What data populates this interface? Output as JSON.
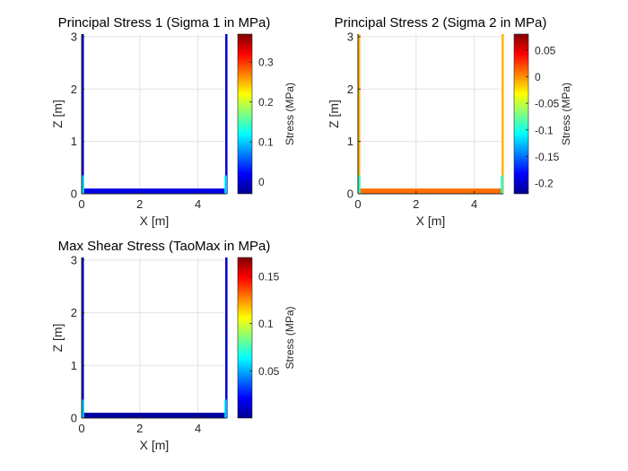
{
  "figure": {
    "background": "#ffffff"
  },
  "chart_data": [
    {
      "type": "heatmap",
      "title": "Principal Stress 1 (Sigma 1 in MPa)",
      "xlabel": "X [m]",
      "ylabel": "Z [m]",
      "xlim": [
        0,
        5
      ],
      "ylim": [
        0,
        3.05
      ],
      "xticks": [
        0,
        2,
        4
      ],
      "yticks": [
        0,
        1,
        2,
        3
      ],
      "grid": true,
      "colormap": "jet",
      "colorbar": {
        "label": "Stress (MPa)",
        "clim": [
          -0.03,
          0.37
        ],
        "ticks": [
          "0",
          "0.1",
          "0.2",
          "0.3"
        ],
        "tick_values": [
          0,
          0.1,
          0.2,
          0.3
        ]
      },
      "structure": {
        "left_wall": {
          "x": [
            0,
            0.06
          ],
          "z": [
            0,
            3.05
          ],
          "value": 0.0
        },
        "right_wall": {
          "x": [
            4.94,
            5.0
          ],
          "z": [
            0,
            3.05
          ],
          "value": 0.0
        },
        "base": {
          "x": [
            0,
            5.0
          ],
          "z": [
            0,
            0.1
          ],
          "value": 0.01
        },
        "corner_value": 0.12
      }
    },
    {
      "type": "heatmap",
      "title": "Principal Stress 2 (Sigma 2 in MPa)",
      "xlabel": "X [m]",
      "ylabel": "Z [m]",
      "xlim": [
        0,
        5
      ],
      "ylim": [
        0,
        3.05
      ],
      "xticks": [
        0,
        2,
        4
      ],
      "yticks": [
        0,
        1,
        2,
        3
      ],
      "grid": true,
      "colormap": "jet",
      "colorbar": {
        "label": "Stress (MPa)",
        "clim": [
          -0.22,
          0.08
        ],
        "ticks": [
          "0.05",
          "0",
          "-0.05",
          "-0.1",
          "-0.15",
          "-0.2"
        ],
        "tick_values": [
          0.05,
          0,
          -0.05,
          -0.1,
          -0.15,
          -0.2
        ]
      },
      "structure": {
        "left_wall": {
          "x": [
            0,
            0.06
          ],
          "z": [
            0,
            3.05
          ],
          "value": -0.01
        },
        "right_wall": {
          "x": [
            4.94,
            5.0
          ],
          "z": [
            0,
            3.05
          ],
          "value": -0.01
        },
        "base": {
          "x": [
            0,
            5.0
          ],
          "z": [
            0,
            0.1
          ],
          "value": 0.01
        },
        "corner_value": -0.1
      }
    },
    {
      "type": "heatmap",
      "title": "Max Shear Stress (TaoMax in MPa)",
      "xlabel": "X [m]",
      "ylabel": "Z [m]",
      "xlim": [
        0,
        5
      ],
      "ylim": [
        0,
        3.05
      ],
      "xticks": [
        0,
        2,
        4
      ],
      "yticks": [
        0,
        1,
        2,
        3
      ],
      "grid": true,
      "colormap": "jet",
      "colorbar": {
        "label": "Stress (MPa)",
        "clim": [
          0,
          0.17
        ],
        "ticks": [
          "0.05",
          "0.1",
          "0.15"
        ],
        "tick_values": [
          0.05,
          0.1,
          0.15
        ]
      },
      "structure": {
        "left_wall": {
          "x": [
            0,
            0.06
          ],
          "z": [
            0,
            3.05
          ],
          "value": 0.012
        },
        "right_wall": {
          "x": [
            4.94,
            5.0
          ],
          "z": [
            0,
            3.05
          ],
          "value": 0.012
        },
        "base": {
          "x": [
            0,
            5.0
          ],
          "z": [
            0,
            0.1
          ],
          "value": 0.005
        },
        "corner_value": 0.06
      }
    }
  ]
}
